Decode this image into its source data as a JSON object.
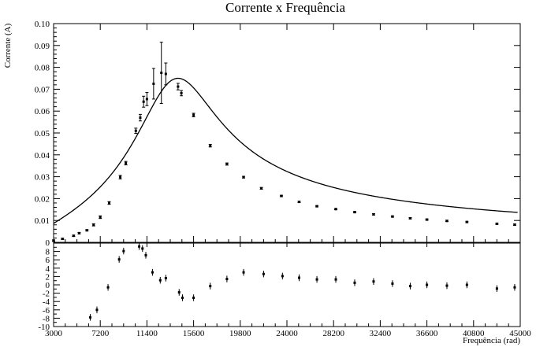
{
  "chart_data": [
    {
      "type": "scatter",
      "title": "Corrente x Frequência",
      "xlabel": "Frequência (rad)",
      "ylabel": "Corrente (A)",
      "xlim": [
        3000,
        45000
      ],
      "ylim": [
        0,
        0.1
      ],
      "grid": false,
      "x_ticks": [
        "3000",
        "7200",
        "11400",
        "15600",
        "19800",
        "24000",
        "28200",
        "32400",
        "36600",
        "40800",
        "45000"
      ],
      "y_ticks": [
        "0",
        "0.01",
        "0.02",
        "0.03",
        "0.04",
        "0.05",
        "0.06",
        "0.07",
        "0.08",
        "0.09",
        "0.10"
      ],
      "series": [
        {
          "kind": "measured",
          "points": [
            {
              "x": 3000,
              "y": 0.0008,
              "err": 0.0003
            },
            {
              "x": 3800,
              "y": 0.0016,
              "err": 0.0003
            },
            {
              "x": 4800,
              "y": 0.003,
              "err": 0.0003
            },
            {
              "x": 5300,
              "y": 0.0042,
              "err": 0.0003
            },
            {
              "x": 6000,
              "y": 0.0055,
              "err": 0.0003
            },
            {
              "x": 6600,
              "y": 0.008,
              "err": 0.0005
            },
            {
              "x": 7200,
              "y": 0.0115,
              "err": 0.0006
            },
            {
              "x": 8000,
              "y": 0.018,
              "err": 0.0006
            },
            {
              "x": 9000,
              "y": 0.0298,
              "err": 0.0008
            },
            {
              "x": 9500,
              "y": 0.0362,
              "err": 0.0008
            },
            {
              "x": 10400,
              "y": 0.051,
              "err": 0.0012
            },
            {
              "x": 10800,
              "y": 0.057,
              "err": 0.0015
            },
            {
              "x": 11100,
              "y": 0.0643,
              "err": 0.0025
            },
            {
              "x": 11400,
              "y": 0.0655,
              "err": 0.003
            },
            {
              "x": 12000,
              "y": 0.0725,
              "err": 0.007
            },
            {
              "x": 12700,
              "y": 0.0775,
              "err": 0.014
            },
            {
              "x": 13100,
              "y": 0.077,
              "err": 0.005
            },
            {
              "x": 14200,
              "y": 0.0712,
              "err": 0.0015
            },
            {
              "x": 14500,
              "y": 0.0682,
              "err": 0.0012
            },
            {
              "x": 15600,
              "y": 0.0582,
              "err": 0.0008
            },
            {
              "x": 17100,
              "y": 0.0442,
              "err": 0.0006
            },
            {
              "x": 18600,
              "y": 0.0358,
              "err": 0.0005
            },
            {
              "x": 20100,
              "y": 0.0298,
              "err": 0.0004
            },
            {
              "x": 21700,
              "y": 0.0247,
              "err": 0.0004
            },
            {
              "x": 23500,
              "y": 0.0212,
              "err": 0.0003
            },
            {
              "x": 25100,
              "y": 0.0185,
              "err": 0.0003
            },
            {
              "x": 26700,
              "y": 0.0165,
              "err": 0.0003
            },
            {
              "x": 28400,
              "y": 0.0152,
              "err": 0.0003
            },
            {
              "x": 30100,
              "y": 0.0138,
              "err": 0.0003
            },
            {
              "x": 31800,
              "y": 0.0128,
              "err": 0.0003
            },
            {
              "x": 33500,
              "y": 0.0118,
              "err": 0.0003
            },
            {
              "x": 35100,
              "y": 0.011,
              "err": 0.0003
            },
            {
              "x": 36600,
              "y": 0.0104,
              "err": 0.0003
            },
            {
              "x": 38400,
              "y": 0.0098,
              "err": 0.0003
            },
            {
              "x": 40200,
              "y": 0.0093,
              "err": 0.0003
            },
            {
              "x": 42900,
              "y": 0.0085,
              "err": 0.0003
            },
            {
              "x": 44500,
              "y": 0.0081,
              "err": 0.0003
            }
          ]
        },
        {
          "kind": "fit-curve",
          "model": "lorentzian",
          "peak_x": 14200,
          "peak_y": 0.075,
          "x_range": [
            3000,
            44800
          ]
        }
      ]
    },
    {
      "type": "scatter",
      "title": "",
      "xlabel": "Frequência (rad)",
      "ylabel": "",
      "xlim": [
        3000,
        45000
      ],
      "ylim": [
        -10,
        10
      ],
      "grid": false,
      "y_ticks": [
        "-10",
        "-8",
        "-6",
        "-4",
        "-2",
        "0",
        "2",
        "4",
        "6",
        "8"
      ],
      "series": [
        {
          "kind": "residuals",
          "points": [
            {
              "x": 6300,
              "y": -7.8,
              "err": 0.8
            },
            {
              "x": 6900,
              "y": -6,
              "err": 0.8
            },
            {
              "x": 7900,
              "y": -0.6,
              "err": 0.8
            },
            {
              "x": 8900,
              "y": 6.1,
              "err": 0.8
            },
            {
              "x": 9300,
              "y": 8.1,
              "err": 0.8
            },
            {
              "x": 10700,
              "y": 9.2,
              "err": 0.8
            },
            {
              "x": 11000,
              "y": 8.7,
              "err": 0.8
            },
            {
              "x": 11300,
              "y": 7.1,
              "err": 0.8
            },
            {
              "x": 11900,
              "y": 3,
              "err": 0.8
            },
            {
              "x": 12600,
              "y": 1.1,
              "err": 0.8
            },
            {
              "x": 13100,
              "y": 1.6,
              "err": 0.8
            },
            {
              "x": 14300,
              "y": -1.8,
              "err": 0.8
            },
            {
              "x": 14600,
              "y": -3.1,
              "err": 0.8
            },
            {
              "x": 15600,
              "y": -3.1,
              "err": 0.8
            },
            {
              "x": 17100,
              "y": -0.3,
              "err": 0.8
            },
            {
              "x": 18600,
              "y": 1.4,
              "err": 0.8
            },
            {
              "x": 20100,
              "y": 3,
              "err": 0.8
            },
            {
              "x": 21900,
              "y": 2.6,
              "err": 0.8
            },
            {
              "x": 23600,
              "y": 2.1,
              "err": 0.8
            },
            {
              "x": 25100,
              "y": 1.7,
              "err": 0.8
            },
            {
              "x": 26700,
              "y": 1.3,
              "err": 0.8
            },
            {
              "x": 28400,
              "y": 1.3,
              "err": 0.8
            },
            {
              "x": 30100,
              "y": 0.5,
              "err": 0.8
            },
            {
              "x": 31800,
              "y": 0.8,
              "err": 0.8
            },
            {
              "x": 33500,
              "y": 0.3,
              "err": 0.8
            },
            {
              "x": 35100,
              "y": -0.3,
              "err": 0.8
            },
            {
              "x": 36600,
              "y": 0,
              "err": 0.8
            },
            {
              "x": 38400,
              "y": -0.2,
              "err": 0.8
            },
            {
              "x": 40200,
              "y": 0,
              "err": 0.8
            },
            {
              "x": 42900,
              "y": -0.9,
              "err": 0.8
            },
            {
              "x": 44500,
              "y": -0.6,
              "err": 0.8
            }
          ]
        }
      ]
    }
  ]
}
